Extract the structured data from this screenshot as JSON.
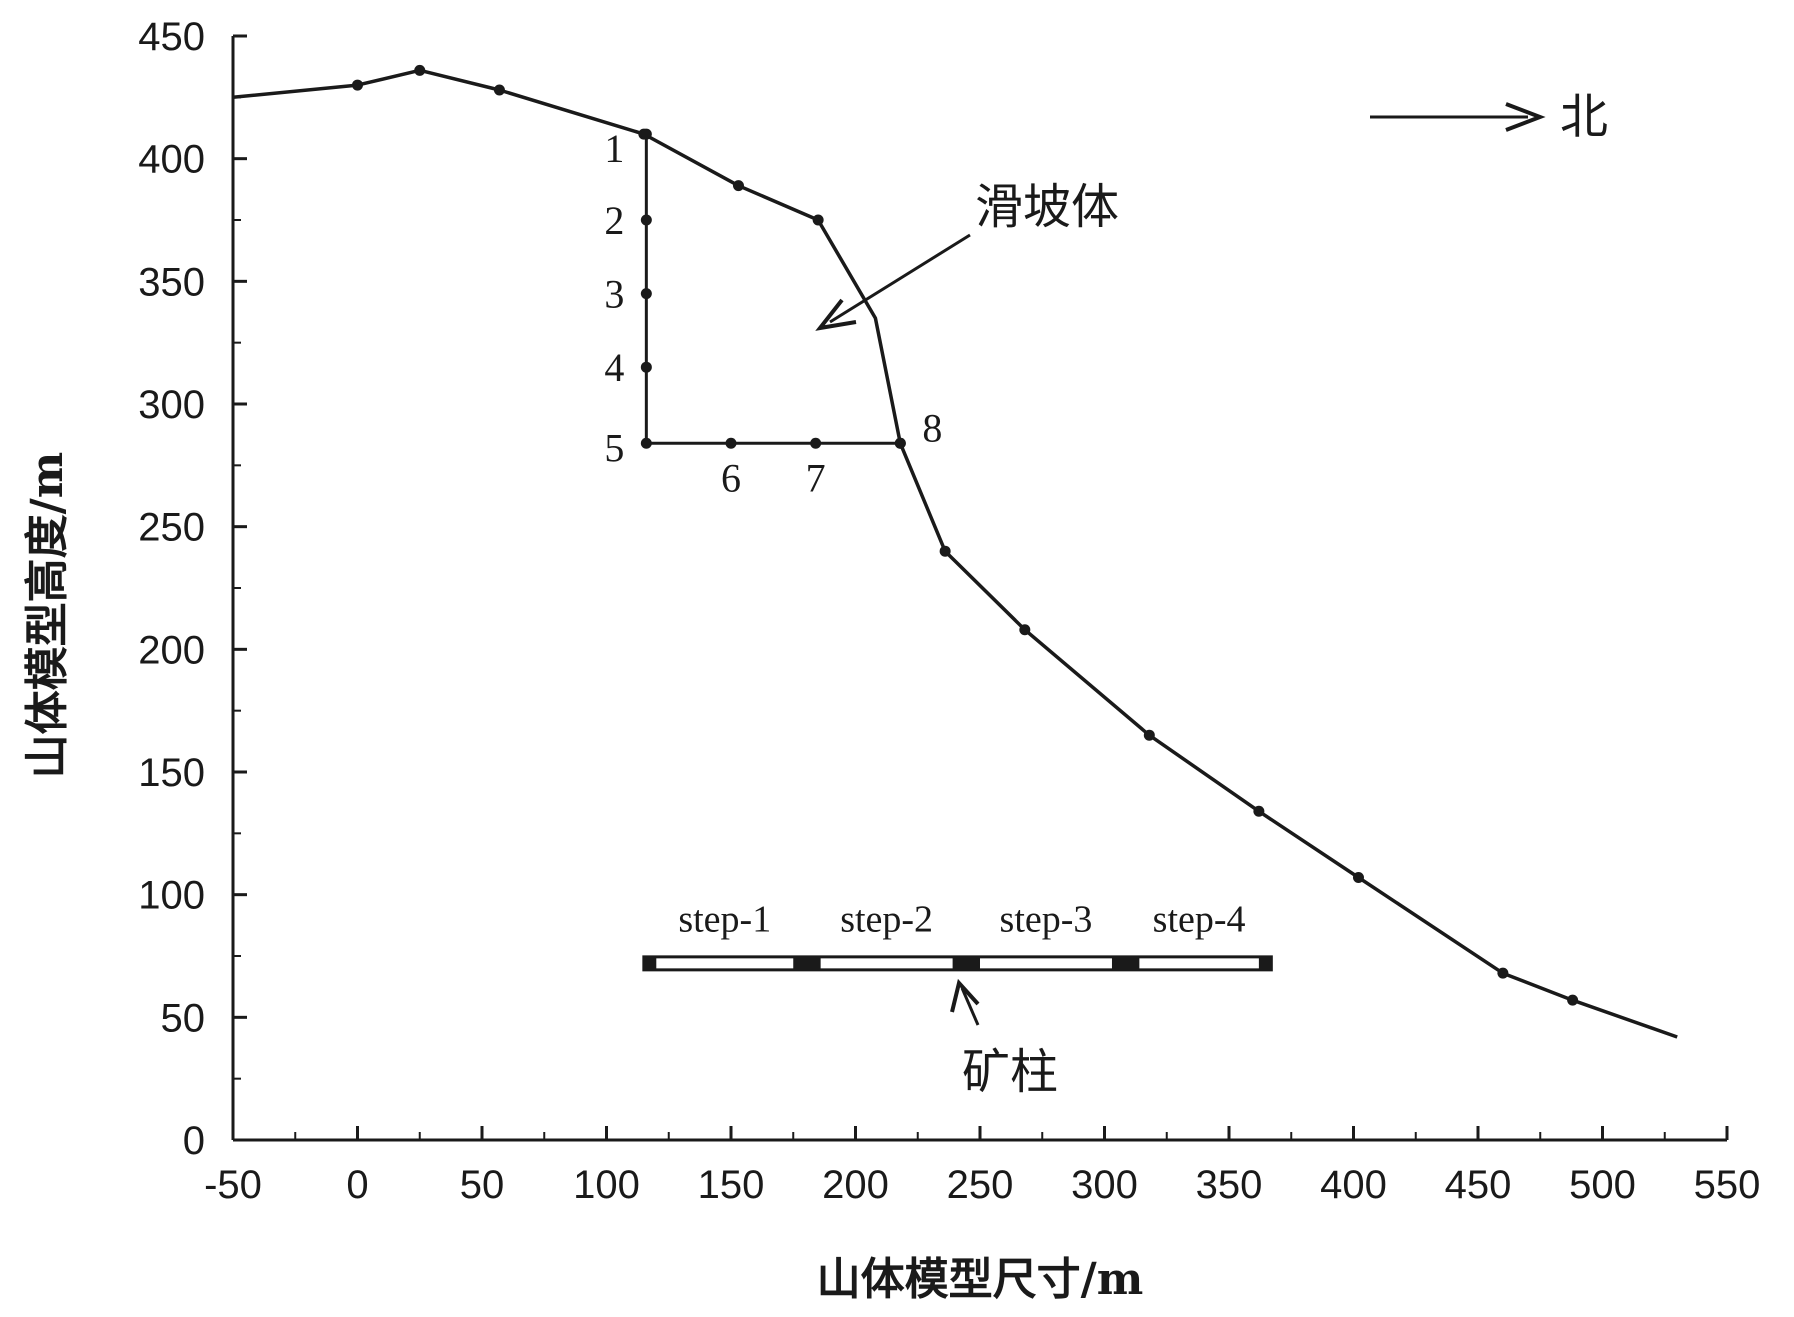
{
  "chart_data": {
    "type": "line",
    "xlabel": "山体模型尺寸/m",
    "ylabel": "山体模型高度/m",
    "xlim": [
      -50,
      550
    ],
    "ylim": [
      0,
      450
    ],
    "xticks": [
      "-50",
      "0",
      "50",
      "100",
      "150",
      "200",
      "250",
      "300",
      "350",
      "400",
      "450",
      "500",
      "550"
    ],
    "yticks": [
      "0",
      "50",
      "100",
      "150",
      "200",
      "250",
      "300",
      "350",
      "400",
      "450"
    ],
    "grid": false,
    "series": [
      {
        "x": [
          -50,
          0,
          25,
          57,
          115,
          153,
          185,
          208,
          218,
          236,
          268,
          318,
          362,
          402,
          460,
          488,
          530
        ],
        "y": [
          425,
          430,
          436,
          428,
          410,
          389,
          375,
          335,
          284,
          240,
          208,
          165,
          134,
          107,
          68,
          57,
          42
        ],
        "markers": [
          false,
          true,
          true,
          true,
          true,
          true,
          true,
          false,
          true,
          true,
          true,
          true,
          true,
          true,
          true,
          true,
          false
        ]
      }
    ],
    "monitoring_points": [
      {
        "label": "1",
        "x": 116,
        "y": 410,
        "anchor": "left"
      },
      {
        "label": "2",
        "x": 116,
        "y": 375,
        "anchor": "left"
      },
      {
        "label": "3",
        "x": 116,
        "y": 345,
        "anchor": "left"
      },
      {
        "label": "4",
        "x": 116,
        "y": 315,
        "anchor": "left"
      },
      {
        "label": "5",
        "x": 116,
        "y": 284,
        "anchor": "left"
      },
      {
        "label": "6",
        "x": 150,
        "y": 284,
        "anchor": "below"
      },
      {
        "label": "7",
        "x": 184,
        "y": 284,
        "anchor": "below"
      },
      {
        "label": "8",
        "x": 218,
        "y": 284,
        "anchor": "right"
      }
    ],
    "annotations": {
      "north": "北",
      "landslide": "滑坡体",
      "pillar": "矿柱"
    },
    "mining_steps": {
      "labels": [
        "step-1",
        "step-2",
        "step-3",
        "step-4"
      ],
      "y": 72,
      "x_start": 115,
      "x_end": 367,
      "pillar_x": [
        [
          115,
          120
        ],
        [
          175,
          186
        ],
        [
          239,
          250
        ],
        [
          303,
          314
        ],
        [
          362,
          367
        ]
      ]
    }
  }
}
